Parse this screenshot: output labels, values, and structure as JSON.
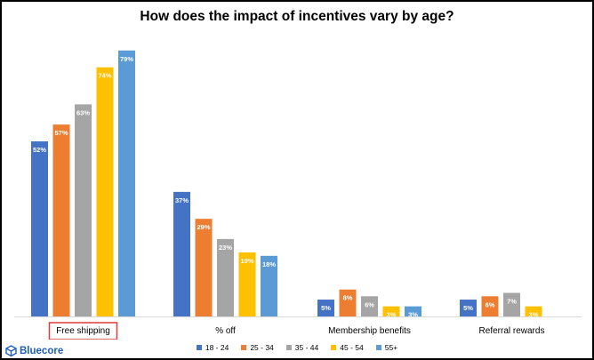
{
  "chart_data": {
    "type": "bar",
    "title": "How does the impact of incentives vary by age?",
    "categories": [
      "Free shipping",
      "% off",
      "Membership benefits",
      "Referral rewards"
    ],
    "highlighted_category": "Free shipping",
    "series": [
      {
        "name": "18 - 24",
        "color": "#4472c4",
        "values": [
          52,
          37,
          5,
          5
        ],
        "labels": [
          "52%",
          "37%",
          "5%",
          "5%"
        ]
      },
      {
        "name": "25 - 34",
        "color": "#ed7d31",
        "values": [
          57,
          29,
          8,
          6
        ],
        "labels": [
          "57%",
          "29%",
          "8%",
          "6%"
        ]
      },
      {
        "name": "35 - 44",
        "color": "#a5a5a5",
        "values": [
          63,
          23,
          6,
          7
        ],
        "labels": [
          "63%",
          "23%",
          "6%",
          "7%"
        ]
      },
      {
        "name": "45 - 54",
        "color": "#ffc000",
        "values": [
          74,
          19,
          3,
          3
        ],
        "labels": [
          "74%",
          "19%",
          "3%",
          "3%"
        ]
      },
      {
        "name": "55+",
        "color": "#5b9bd5",
        "values": [
          79,
          18,
          3,
          null
        ],
        "labels": [
          "79%",
          "18%",
          "3%",
          ""
        ]
      }
    ],
    "ylim": [
      0,
      80
    ],
    "grid": false,
    "legend": "bottom"
  },
  "brand": {
    "name": "Bluecore",
    "icon": "cube-logo-icon",
    "color": "#1f5fbf"
  },
  "highlight_color": "#e03c3c"
}
